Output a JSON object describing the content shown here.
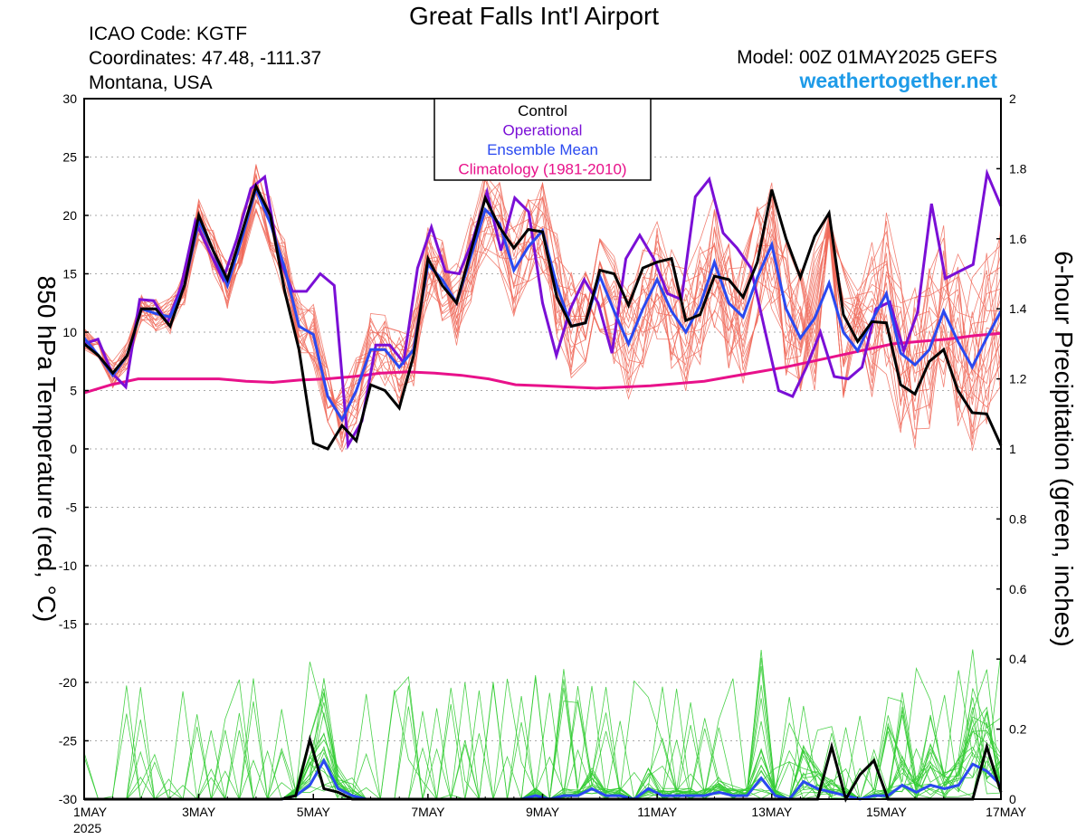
{
  "page": {
    "title": "Great Falls Int'l Airport",
    "icao": "ICAO Code: KGTF",
    "coords": "Coordinates: 47.48, -111.37",
    "region": "Montana, USA",
    "model": "Model: 00Z 01MAY2025 GEFS",
    "site": "weathertogether.net"
  },
  "colors": {
    "control": "#000000",
    "operational": "#7a0fd6",
    "ensemble_mean": "#2a49f0",
    "climatology": "#e8118a",
    "members_temp": "#f06a5a",
    "members_precip": "#33cc33",
    "site": "#1e9be8"
  },
  "chart_data": {
    "type": "line",
    "ylabel": "850 hPa Temperature (red, °C)",
    "y2label": "6-hour Precipitation (green, inches)",
    "ylim": [
      -30,
      30
    ],
    "y2lim": [
      0,
      2
    ],
    "x_range": [
      0,
      16
    ],
    "grid": "horizontal dotted",
    "legend": [
      "Control",
      "Operational",
      "Ensemble Mean",
      "Climatology (1981-2010)"
    ],
    "legend_placement": "top-center",
    "x_ticks": [
      {
        "x": 0,
        "label": "1MAY",
        "sub": "2025"
      },
      {
        "x": 2,
        "label": "3MAY"
      },
      {
        "x": 4,
        "label": "5MAY"
      },
      {
        "x": 6,
        "label": "7MAY"
      },
      {
        "x": 8,
        "label": "9MAY"
      },
      {
        "x": 10,
        "label": "11MAY"
      },
      {
        "x": 12,
        "label": "13MAY"
      },
      {
        "x": 14,
        "label": "15MAY"
      },
      {
        "x": 16,
        "label": "17MAY"
      }
    ],
    "y_ticks": [
      30,
      25,
      20,
      15,
      10,
      5,
      0,
      -5,
      -10,
      -15,
      -20,
      -25,
      -30
    ],
    "y2_ticks": [
      "2",
      "1.8",
      "1.6",
      "1.4",
      "1.2",
      "1",
      "0.8",
      "0.6",
      "0.4",
      "0.2",
      "0"
    ],
    "control_temp": [
      9,
      8,
      6.5,
      8,
      12,
      12,
      10.5,
      14,
      20,
      17,
      14.5,
      18.5,
      22.5,
      20,
      13.5,
      8.5,
      0.5,
      0,
      2,
      0.7,
      5.5,
      5,
      3.5,
      8,
      16.3,
      14,
      12.5,
      17,
      21.5,
      19,
      17.2,
      18.8,
      18.6,
      13,
      10.5,
      10.8,
      15.3,
      15,
      12.3,
      15.5,
      16,
      16.3,
      11,
      11.5,
      14.8,
      14.5,
      13,
      16,
      22.2,
      18,
      14.7,
      18.2,
      20.2,
      11.5,
      9.2,
      10.9,
      10.8,
      5.5,
      4.7,
      7.5,
      8.5,
      5,
      3.1,
      3,
      0.3
    ],
    "operational_temp": [
      9,
      9.4,
      6.5,
      5.3,
      12.8,
      12.7,
      10.8,
      14,
      19.5,
      17,
      14.5,
      18,
      22.3,
      23.3,
      16.5,
      13.5,
      13.5,
      15,
      14,
      0.3,
      2.4,
      8.9,
      8.9,
      7.4,
      15.5,
      19,
      15.2,
      15,
      18,
      22,
      17,
      21.5,
      20.3,
      12.5,
      8,
      12,
      14.5,
      12.5,
      8.2,
      16.3,
      18.3,
      16.3,
      13.3,
      12.8,
      21.6,
      23.1,
      18.5,
      17.2,
      15.5,
      10.2,
      5,
      4.5,
      7,
      10,
      6.2,
      6,
      7,
      12,
      12.6,
      8.4,
      11.7,
      21,
      14.6,
      15.2,
      15.8,
      23.6,
      20.8
    ],
    "ensemble_mean_temp": [
      9.5,
      8,
      6.3,
      8,
      12,
      11.6,
      11.3,
      14,
      19.5,
      17,
      14,
      18,
      22.3,
      19.3,
      15.5,
      10.5,
      9.8,
      4.5,
      2.5,
      5,
      8.5,
      8.5,
      7,
      8.5,
      15.8,
      14.5,
      12.5,
      16.5,
      20.5,
      19.3,
      15.3,
      17.3,
      18.7,
      14,
      10.5,
      10.8,
      14.8,
      11.8,
      9,
      12,
      14.5,
      11.8,
      10,
      12.3,
      16,
      12.5,
      11.3,
      14.7,
      17.5,
      12,
      9.5,
      11.2,
      14.2,
      10,
      8.4,
      11,
      13.3,
      8.2,
      7.2,
      8.5,
      11.8,
      9.2,
      7,
      9.5,
      11.8
    ],
    "climatology_temp": [
      4.8,
      5.5,
      6,
      6,
      6,
      6,
      5.8,
      5.7,
      5.9,
      6,
      6.2,
      6.5,
      6.6,
      6.5,
      6.3,
      6,
      5.5,
      5.4,
      5.3,
      5.2,
      5.3,
      5.4,
      5.6,
      5.8,
      6.2,
      6.6,
      7,
      7.5,
      8,
      8.5,
      9,
      9.2,
      9.4,
      9.7,
      9.9
    ],
    "control_precip": [
      0,
      0,
      0,
      0,
      0,
      0,
      0,
      0,
      0,
      0,
      0,
      0,
      0,
      0,
      0,
      0.01,
      0.17,
      0.03,
      0.02,
      0,
      0,
      0,
      0,
      0,
      0,
      0,
      0,
      0,
      0,
      0,
      0,
      0,
      0,
      0,
      0,
      0,
      0,
      0,
      0,
      0,
      0,
      0,
      0,
      0,
      0,
      0,
      0,
      0,
      0,
      0,
      0,
      0,
      0,
      0.15,
      0,
      0.07,
      0.11,
      0,
      0,
      0,
      0,
      0,
      0,
      0,
      0.15,
      0.02
    ],
    "ensemble_mean_precip": [
      0,
      0,
      0,
      0,
      0,
      0,
      0,
      0,
      0,
      0,
      0,
      0,
      0,
      0,
      0,
      0.01,
      0.04,
      0.11,
      0.03,
      0.01,
      0,
      0,
      0,
      0,
      0,
      0,
      0,
      0,
      0,
      0,
      0,
      0,
      0.01,
      0,
      0.01,
      0.01,
      0.03,
      0.01,
      0.01,
      0,
      0.03,
      0.01,
      0.01,
      0.01,
      0.01,
      0.02,
      0.01,
      0.01,
      0.06,
      0.01,
      0,
      0.05,
      0.03,
      0.02,
      0.01,
      0,
      0.01,
      0.01,
      0.04,
      0.02,
      0.04,
      0.03,
      0.04,
      0.1,
      0.08,
      0.04
    ]
  }
}
